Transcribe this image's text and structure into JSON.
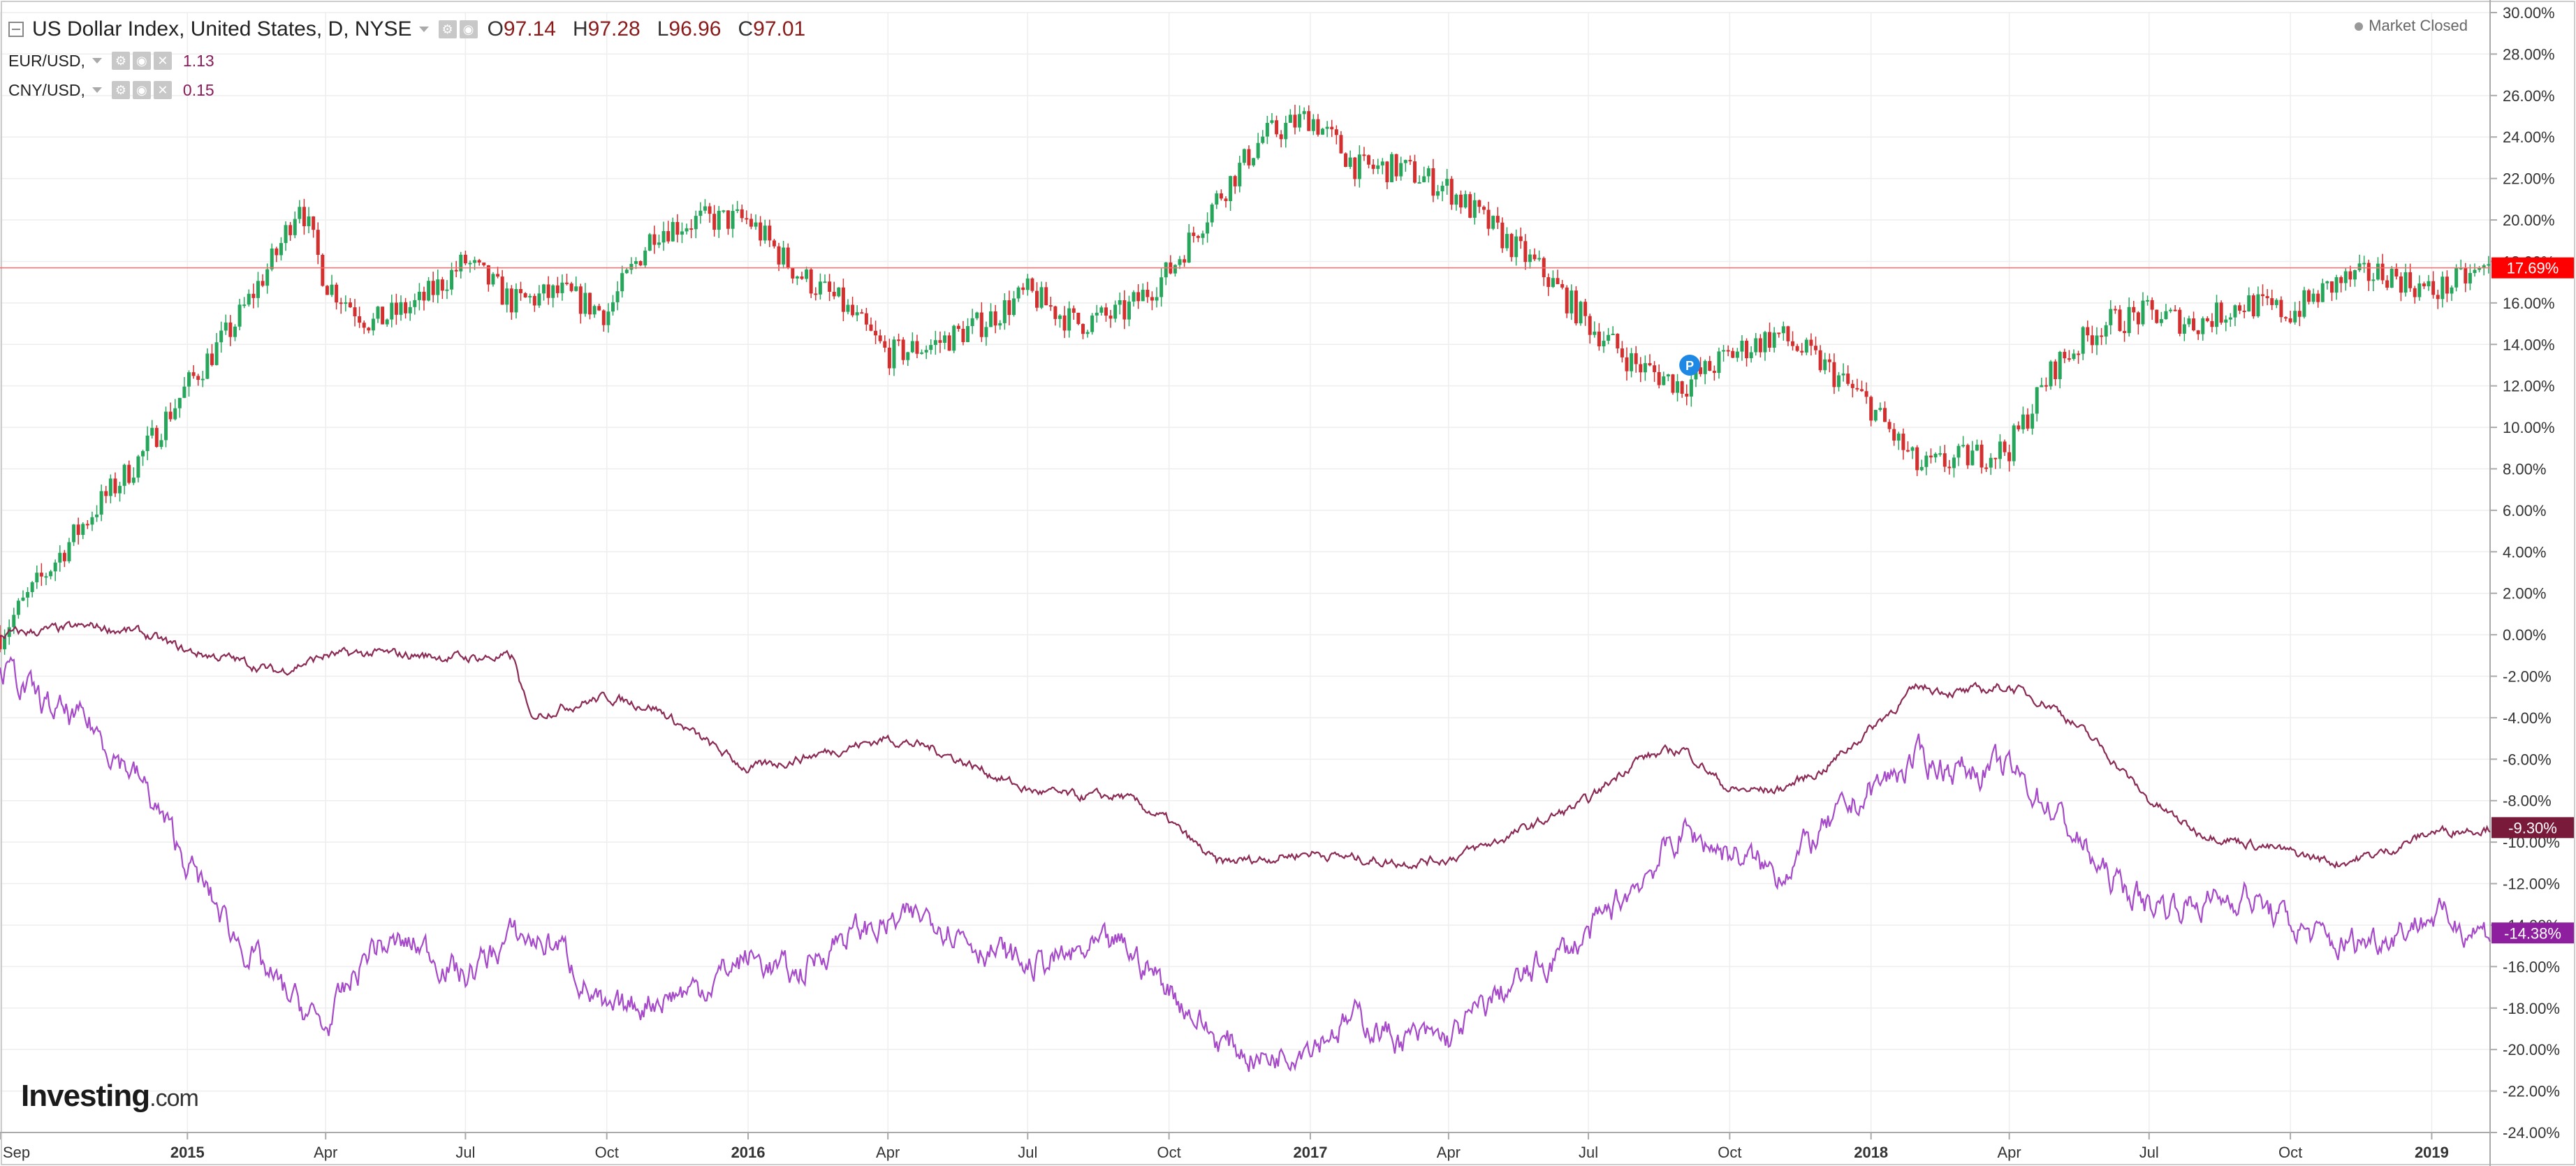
{
  "legend": {
    "main": {
      "title": "US Dollar Index, United States, D, NYSE",
      "open_label": "O",
      "open": "97.14",
      "high_label": "H",
      "high": "97.28",
      "low_label": "L",
      "low": "96.96",
      "close_label": "C",
      "close": "97.01"
    },
    "eur": {
      "label": "EUR/USD,",
      "value": "1.13"
    },
    "cny": {
      "label": "CNY/USD,",
      "value": "0.15"
    }
  },
  "market_status": "Market Closed",
  "logo": {
    "main": "Investing",
    "suffix": ".com"
  },
  "colors": {
    "up": "#26a65b",
    "down": "#d32f2f",
    "eur_line": "#8b2a55",
    "cny_line": "#a64ac9",
    "dxy_badge": "#ff0000",
    "eur_badge": "#7a1a3a",
    "cny_badge": "#8e1f9e",
    "grid": "#eeeeee",
    "axis_text": "#333333"
  },
  "chart_data": {
    "type": "line",
    "x_axis_labels": [
      "Sep",
      "2015",
      "Apr",
      "Jul",
      "Oct",
      "2016",
      "Apr",
      "Jul",
      "Oct",
      "2017",
      "Apr",
      "Jul",
      "Oct",
      "2018",
      "Apr",
      "Jul",
      "Oct",
      "2019"
    ],
    "x_axis_label_dates": [
      "2014-09-01",
      "2015-01-01",
      "2015-04-01",
      "2015-07-01",
      "2015-10-01",
      "2016-01-01",
      "2016-04-01",
      "2016-07-01",
      "2016-10-01",
      "2017-01-01",
      "2017-04-01",
      "2017-07-01",
      "2017-10-01",
      "2018-01-01",
      "2018-04-01",
      "2018-07-01",
      "2018-10-01",
      "2019-01-01"
    ],
    "x_range": [
      "2014-09-01",
      "2019-02-08"
    ],
    "y_unit": "%",
    "y_range": [
      -24,
      30
    ],
    "y_ticks": [
      "30.00%",
      "28.00%",
      "26.00%",
      "24.00%",
      "22.00%",
      "20.00%",
      "18.00%",
      "16.00%",
      "14.00%",
      "12.00%",
      "10.00%",
      "8.00%",
      "6.00%",
      "4.00%",
      "2.00%",
      "0.00%",
      "-2.00%",
      "-4.00%",
      "-6.00%",
      "-8.00%",
      "-10.00%",
      "-12.00%",
      "-14.00%",
      "-16.00%",
      "-18.00%",
      "-20.00%",
      "-22.00%",
      "-24.00%"
    ],
    "grid": true,
    "series": [
      {
        "style": "candlestick",
        "last_badge": "17.69%",
        "last_value": 17.69,
        "x": [
          "2014-09-01",
          "2014-10-01",
          "2014-11-01",
          "2014-12-01",
          "2015-01-01",
          "2015-02-01",
          "2015-03-01",
          "2015-03-15",
          "2015-04-01",
          "2015-05-01",
          "2015-06-01",
          "2015-07-01",
          "2015-08-01",
          "2015-09-01",
          "2015-10-01",
          "2015-11-01",
          "2015-12-01",
          "2016-01-01",
          "2016-02-01",
          "2016-03-01",
          "2016-04-01",
          "2016-05-01",
          "2016-06-01",
          "2016-07-01",
          "2016-08-01",
          "2016-09-01",
          "2016-10-01",
          "2016-11-01",
          "2016-12-01",
          "2017-01-01",
          "2017-02-01",
          "2017-03-01",
          "2017-04-01",
          "2017-05-01",
          "2017-06-01",
          "2017-07-01",
          "2017-08-01",
          "2017-09-01",
          "2017-10-01",
          "2017-11-01",
          "2017-12-01",
          "2018-01-01",
          "2018-02-01",
          "2018-03-01",
          "2018-04-01",
          "2018-05-01",
          "2018-06-01",
          "2018-07-01",
          "2018-08-01",
          "2018-09-01",
          "2018-10-01",
          "2018-11-01",
          "2018-12-01",
          "2019-01-01",
          "2019-02-08"
        ],
        "values": [
          0.0,
          3.0,
          6.0,
          8.5,
          12.0,
          15.0,
          18.5,
          21.0,
          17.0,
          15.0,
          16.0,
          18.0,
          16.0,
          16.5,
          15.5,
          19.5,
          20.0,
          20.0,
          17.5,
          16.0,
          13.5,
          14.0,
          15.0,
          16.5,
          15.0,
          15.5,
          17.5,
          21.0,
          24.0,
          25.0,
          22.5,
          22.5,
          21.5,
          19.5,
          17.5,
          15.0,
          13.0,
          12.0,
          13.5,
          14.5,
          13.0,
          11.0,
          8.0,
          8.5,
          9.0,
          13.0,
          15.0,
          15.5,
          15.0,
          16.0,
          15.5,
          17.0,
          17.5,
          16.5,
          17.7
        ]
      },
      {
        "style": "line",
        "last_badge": "-9.30%",
        "last_value": -9.3,
        "x": [
          "2014-09-01",
          "2014-10-01",
          "2014-11-01",
          "2014-12-01",
          "2015-01-01",
          "2015-02-01",
          "2015-03-01",
          "2015-04-01",
          "2015-05-01",
          "2015-06-01",
          "2015-07-01",
          "2015-08-01",
          "2015-08-12",
          "2015-09-01",
          "2015-10-01",
          "2015-11-01",
          "2015-12-01",
          "2016-01-01",
          "2016-02-01",
          "2016-03-01",
          "2016-04-01",
          "2016-05-01",
          "2016-06-01",
          "2016-07-01",
          "2016-08-01",
          "2016-09-01",
          "2016-10-01",
          "2016-11-01",
          "2016-12-01",
          "2017-01-01",
          "2017-02-01",
          "2017-03-01",
          "2017-04-01",
          "2017-05-01",
          "2017-06-01",
          "2017-07-01",
          "2017-08-01",
          "2017-09-01",
          "2017-10-01",
          "2017-11-01",
          "2017-12-01",
          "2018-01-01",
          "2018-02-01",
          "2018-03-01",
          "2018-04-01",
          "2018-05-01",
          "2018-06-01",
          "2018-07-01",
          "2018-08-01",
          "2018-09-01",
          "2018-10-01",
          "2018-11-01",
          "2018-12-01",
          "2019-01-01",
          "2019-02-08"
        ],
        "values": [
          0.0,
          0.2,
          0.4,
          0.1,
          -0.8,
          -1.2,
          -1.8,
          -1.0,
          -0.9,
          -1.0,
          -1.1,
          -1.1,
          -4.0,
          -3.5,
          -3.0,
          -3.5,
          -5.0,
          -6.5,
          -6.0,
          -5.5,
          -5.0,
          -5.5,
          -6.5,
          -7.5,
          -7.8,
          -7.8,
          -9.0,
          -11.0,
          -10.8,
          -10.5,
          -10.8,
          -11.0,
          -10.8,
          -10.0,
          -9.0,
          -8.0,
          -6.0,
          -5.5,
          -7.5,
          -7.5,
          -6.5,
          -4.5,
          -2.5,
          -2.8,
          -2.5,
          -3.5,
          -5.5,
          -8.0,
          -9.5,
          -10.0,
          -10.5,
          -11.0,
          -10.5,
          -9.5,
          -9.3
        ]
      },
      {
        "style": "line",
        "last_badge": "-14.38%",
        "last_value": -14.38,
        "x": [
          "2014-09-01",
          "2014-10-01",
          "2014-11-01",
          "2014-12-01",
          "2015-01-01",
          "2015-02-01",
          "2015-03-01",
          "2015-04-01",
          "2015-05-01",
          "2015-06-01",
          "2015-07-01",
          "2015-08-01",
          "2015-09-01",
          "2015-10-01",
          "2015-11-01",
          "2015-12-01",
          "2016-01-01",
          "2016-02-01",
          "2016-03-01",
          "2016-04-01",
          "2016-05-01",
          "2016-06-01",
          "2016-07-01",
          "2016-08-01",
          "2016-09-01",
          "2016-10-01",
          "2016-11-01",
          "2016-12-01",
          "2017-01-01",
          "2017-02-01",
          "2017-03-01",
          "2017-04-01",
          "2017-05-01",
          "2017-06-01",
          "2017-07-01",
          "2017-08-01",
          "2017-09-01",
          "2017-10-01",
          "2017-11-01",
          "2017-12-01",
          "2018-01-01",
          "2018-02-01",
          "2018-03-01",
          "2018-04-01",
          "2018-05-01",
          "2018-06-01",
          "2018-07-01",
          "2018-08-01",
          "2018-09-01",
          "2018-10-01",
          "2018-11-01",
          "2018-12-01",
          "2019-01-01",
          "2019-02-08"
        ],
        "values": [
          -1.5,
          -3.5,
          -4.5,
          -7.0,
          -11.0,
          -14.5,
          -17.0,
          -19.0,
          -15.0,
          -15.0,
          -16.5,
          -14.5,
          -15.0,
          -18.5,
          -17.5,
          -17.0,
          -15.5,
          -16.5,
          -14.5,
          -14.0,
          -13.5,
          -15.0,
          -16.0,
          -15.5,
          -15.0,
          -17.0,
          -19.5,
          -20.5,
          -19.5,
          -18.5,
          -19.5,
          -19.5,
          -17.5,
          -16.0,
          -14.5,
          -12.0,
          -9.5,
          -10.5,
          -11.5,
          -9.5,
          -7.5,
          -6.0,
          -6.5,
          -6.5,
          -8.5,
          -11.5,
          -13.0,
          -13.0,
          -12.5,
          -14.0,
          -15.0,
          -14.5,
          -13.5,
          -14.38
        ]
      }
    ],
    "annotation": {
      "label": "P",
      "date": "2017-09-05",
      "value": 13.0
    }
  }
}
